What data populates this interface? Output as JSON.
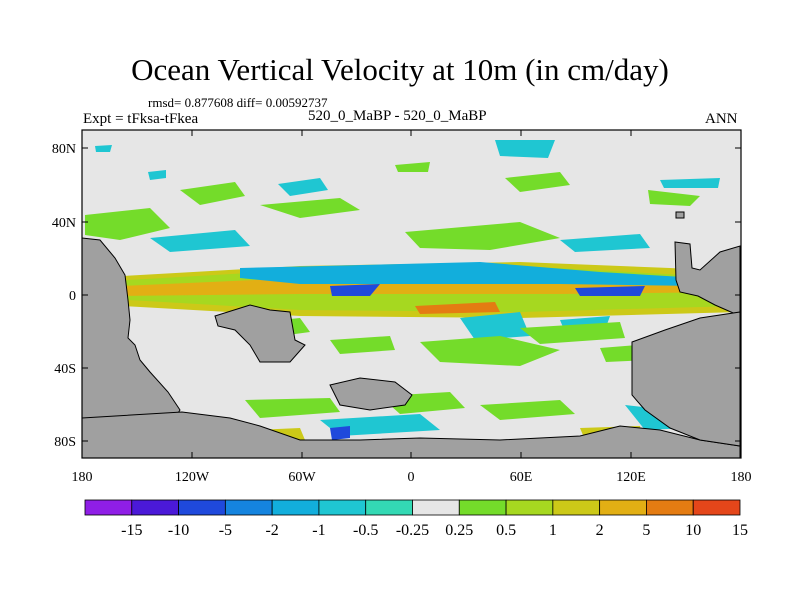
{
  "header": {
    "title": "Ocean Vertical Velocity at 10m (in cm/day)",
    "stats": "rmsd= 0.877608 diff= 0.00592737",
    "left_string": "Expt = tFksa-tFkea",
    "center_string": "520_0_MaBP - 520_0_MaBP",
    "right_string": "ANN"
  },
  "chart_data": {
    "type": "heatmap",
    "title": "Ocean Vertical Velocity at 10m (in cm/day)",
    "x_ticks": [
      "180",
      "120W",
      "60W",
      "0",
      "60E",
      "120E",
      "180"
    ],
    "y_ticks": [
      "80N",
      "40N",
      "0",
      "40S",
      "80S"
    ],
    "xlim": [
      -180,
      180
    ],
    "ylim": [
      -90,
      90
    ],
    "colorbar": {
      "levels": [
        "-15",
        "-10",
        "-5",
        "-2",
        "-1",
        "-0.5",
        "-0.25",
        "0.25",
        "0.5",
        "1",
        "2",
        "5",
        "10",
        "15"
      ],
      "colors": [
        "#8f1ee6",
        "#4b19d8",
        "#1f49dc",
        "#1584df",
        "#12aedc",
        "#1fc6d2",
        "#33d9b4",
        "#e6e6e6",
        "#74dc2a",
        "#a6d820",
        "#ccc918",
        "#e2af14",
        "#e47c12",
        "#e4461a"
      ]
    },
    "land_color": "#a0a0a0",
    "ocean_color": "#e6e6e6"
  }
}
